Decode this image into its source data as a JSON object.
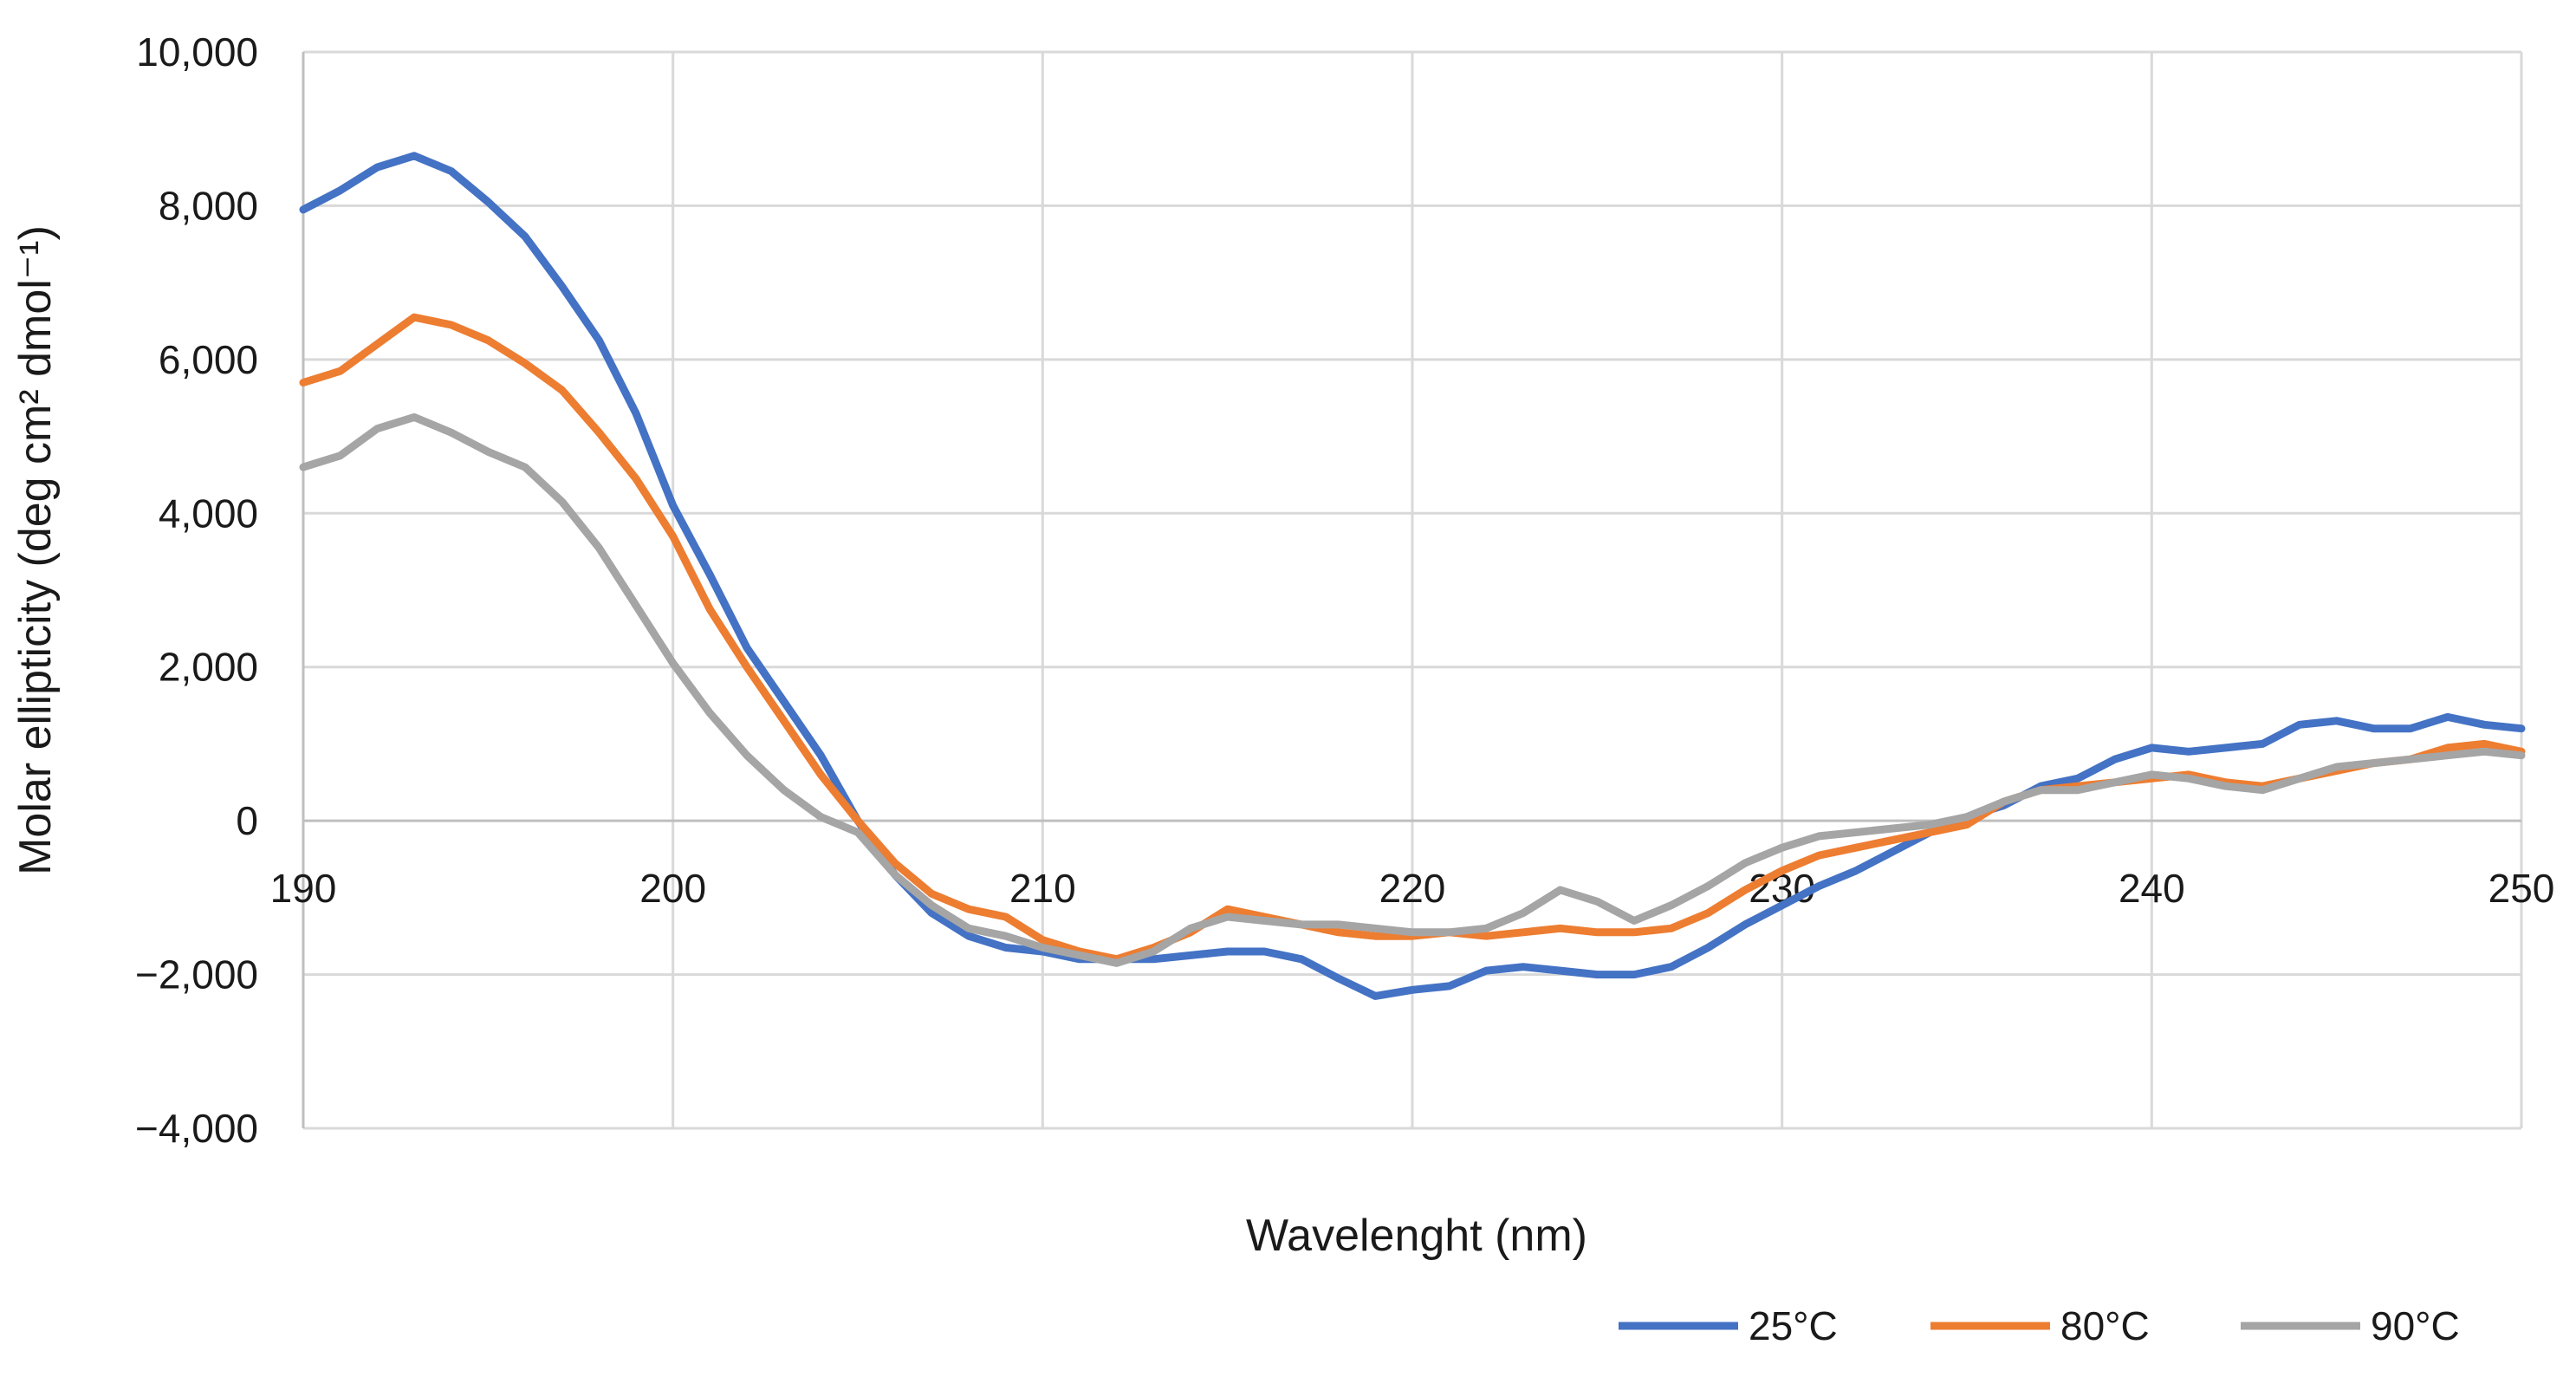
{
  "chart_data": {
    "type": "line",
    "title": "",
    "xlabel": "Wavelenght (nm)",
    "ylabel": "Molar ellipticity (deg cm² dmol⁻¹)",
    "xlim": [
      190,
      250
    ],
    "ylim": [
      -4000,
      10000
    ],
    "xticks": [
      190,
      200,
      210,
      220,
      230,
      240,
      250
    ],
    "xtick_labels": [
      "190",
      "200",
      "210",
      "220",
      "230",
      "240",
      "250"
    ],
    "yticks": [
      -4000,
      -2000,
      0,
      2000,
      4000,
      6000,
      8000,
      10000
    ],
    "ytick_labels": [
      "−4,000",
      "−2,000",
      "0",
      "2,000",
      "4,000",
      "6,000",
      "8,000",
      "10,000"
    ],
    "grid": true,
    "legend_position": "bottom-right",
    "x": [
      190,
      191,
      192,
      193,
      194,
      195,
      196,
      197,
      198,
      199,
      200,
      201,
      202,
      203,
      204,
      205,
      206,
      207,
      208,
      209,
      210,
      211,
      212,
      213,
      214,
      215,
      216,
      217,
      218,
      219,
      220,
      221,
      222,
      223,
      224,
      225,
      226,
      227,
      228,
      229,
      230,
      231,
      232,
      233,
      234,
      235,
      236,
      237,
      238,
      239,
      240,
      241,
      242,
      243,
      244,
      245,
      246,
      247,
      248,
      249,
      250
    ],
    "series": [
      {
        "name": "25°C",
        "color": "#4472c4",
        "values": [
          7950,
          8200,
          8500,
          8650,
          8450,
          8050,
          7600,
          6950,
          6250,
          5300,
          4100,
          3200,
          2250,
          1550,
          850,
          0,
          -700,
          -1200,
          -1500,
          -1650,
          -1700,
          -1800,
          -1800,
          -1800,
          -1750,
          -1700,
          -1700,
          -1800,
          -2050,
          -2280,
          -2200,
          -2150,
          -1950,
          -1900,
          -1950,
          -2000,
          -2000,
          -1900,
          -1650,
          -1350,
          -1100,
          -850,
          -650,
          -400,
          -150,
          50,
          200,
          450,
          550,
          800,
          950,
          900,
          950,
          1000,
          1250,
          1300,
          1200,
          1200,
          1350,
          1250,
          1200
        ]
      },
      {
        "name": "80°C",
        "color": "#ed7d31",
        "values": [
          5700,
          5850,
          6200,
          6550,
          6450,
          6250,
          5950,
          5600,
          5050,
          4450,
          3700,
          2750,
          2000,
          1300,
          600,
          0,
          -550,
          -950,
          -1150,
          -1250,
          -1550,
          -1700,
          -1800,
          -1650,
          -1450,
          -1150,
          -1250,
          -1350,
          -1450,
          -1500,
          -1500,
          -1450,
          -1500,
          -1450,
          -1400,
          -1450,
          -1450,
          -1400,
          -1200,
          -900,
          -650,
          -450,
          -350,
          -250,
          -150,
          -50,
          250,
          400,
          450,
          500,
          550,
          600,
          500,
          450,
          550,
          650,
          750,
          800,
          950,
          1000,
          900
        ]
      },
      {
        "name": "90°C",
        "color": "#a5a5a5",
        "values": [
          4600,
          4750,
          5100,
          5250,
          5050,
          4800,
          4600,
          4150,
          3550,
          2800,
          2050,
          1400,
          850,
          400,
          50,
          -150,
          -700,
          -1100,
          -1400,
          -1500,
          -1650,
          -1750,
          -1850,
          -1700,
          -1400,
          -1250,
          -1300,
          -1350,
          -1350,
          -1400,
          -1450,
          -1450,
          -1400,
          -1200,
          -900,
          -1050,
          -1300,
          -1100,
          -850,
          -550,
          -350,
          -200,
          -150,
          -100,
          -50,
          50,
          250,
          400,
          400,
          500,
          600,
          550,
          450,
          400,
          550,
          700,
          750,
          800,
          850,
          900,
          850
        ]
      }
    ]
  }
}
